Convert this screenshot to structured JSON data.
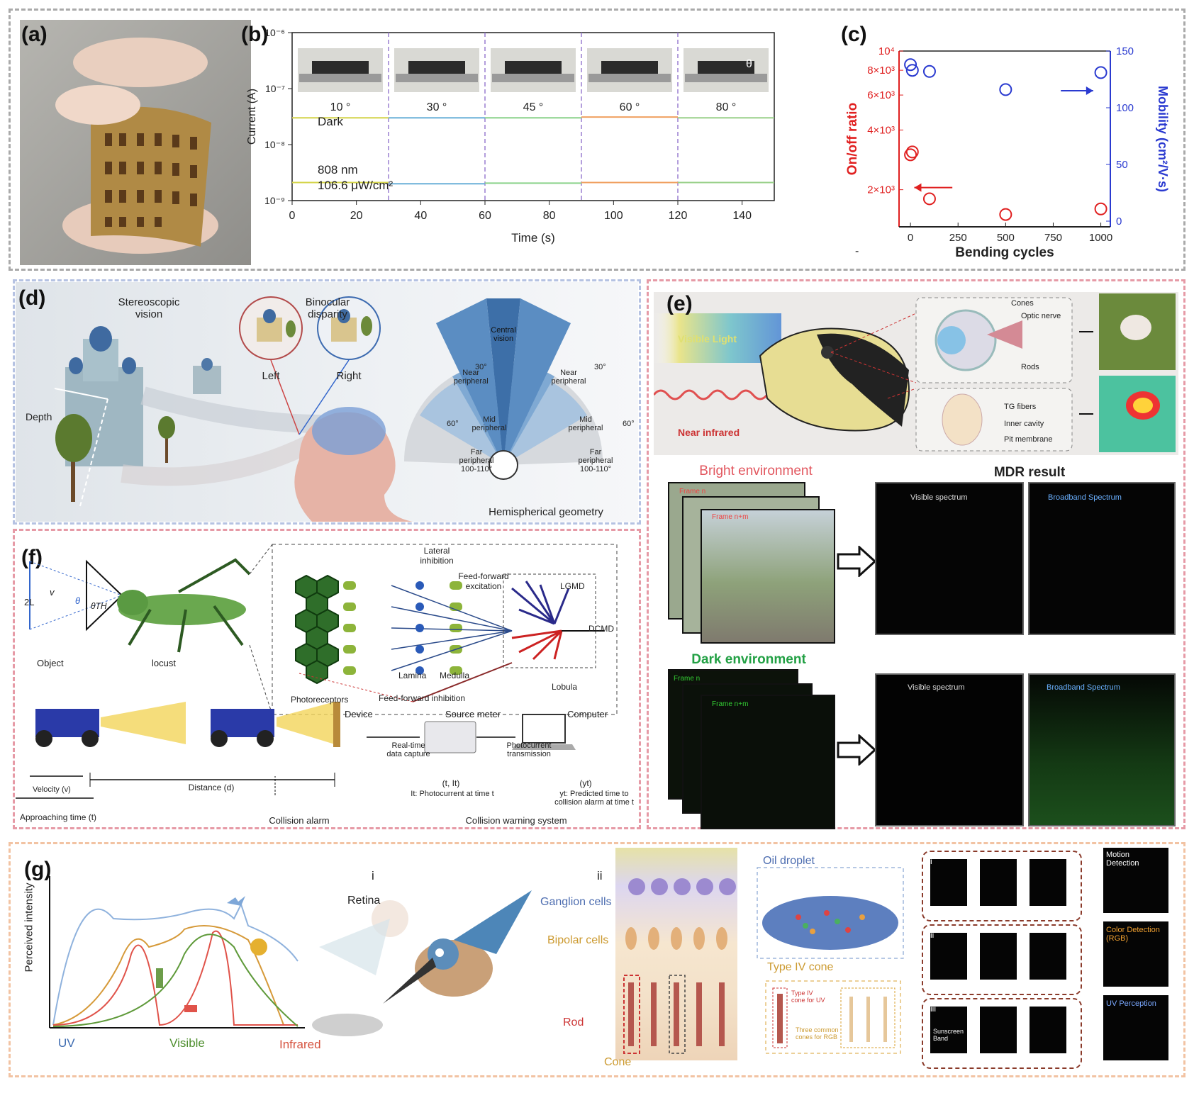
{
  "labels": {
    "a": "(a)",
    "b": "(b)",
    "c": "(c)",
    "d": "(d)",
    "e": "(e)",
    "f": "(f)",
    "g": "(g)"
  },
  "b": {
    "angles": [
      "10 °",
      "30 °",
      "45 °",
      "60 °",
      "80 °"
    ],
    "dark": "Dark",
    "wavelength": "808 nm",
    "intensity": "106.6 μW/cm²",
    "theta": "θ",
    "chart_data": {
      "type": "line",
      "xlabel": "Time (s)",
      "ylabel": "Current (A)",
      "xlim": [
        0,
        150
      ],
      "ylim": [
        1e-09,
        1e-06
      ],
      "log_y": true,
      "x_ticks": [
        "0",
        "20",
        "40",
        "60",
        "80",
        "100",
        "120",
        "140"
      ],
      "y_ticks": [
        "10⁻⁹",
        "10⁻⁸",
        "10⁻⁷",
        "10⁻⁶"
      ],
      "dividers": [
        30,
        60,
        90,
        120
      ],
      "series": [
        {
          "segments": [
            [
              0,
              30,
              3e-08
            ],
            [
              30,
              60,
              3e-08
            ],
            [
              60,
              90,
              3e-08
            ],
            [
              90,
              120,
              3.1e-08
            ],
            [
              120,
              150,
              3e-08
            ]
          ]
        },
        {
          "segments": [
            [
              0,
              30,
              2.1e-09
            ],
            [
              30,
              60,
              2e-09
            ],
            [
              60,
              90,
              2.05e-09
            ],
            [
              90,
              120,
              2.1e-09
            ],
            [
              120,
              150,
              2.1e-09
            ]
          ]
        }
      ]
    }
  },
  "c": {
    "chart_data": {
      "type": "scatter",
      "xlabel": "Bending cycles",
      "ylabel_left": "On/off ratio",
      "ylabel_right": "Mobility (cm²/V·s)",
      "x_ticks": [
        "0",
        "250",
        "500",
        "750",
        "1000"
      ],
      "y_left_ticks": [
        "2×10³",
        "4×10³",
        "6×10³",
        "8×10³",
        "10⁴"
      ],
      "y_right_ticks": [
        "0",
        "50",
        "100",
        "150"
      ],
      "xlim": [
        -60,
        1050
      ],
      "ylim_right": [
        -5,
        150
      ],
      "onoff": [
        [
          0,
          3000
        ],
        [
          10,
          3100
        ],
        [
          100,
          1800
        ],
        [
          500,
          1500
        ],
        [
          1000,
          1600
        ]
      ],
      "mobility": [
        [
          0,
          138
        ],
        [
          10,
          133
        ],
        [
          100,
          132
        ],
        [
          500,
          116
        ],
        [
          1000,
          131
        ]
      ]
    },
    "dash": "-"
  },
  "d": {
    "stereo": "Stereoscopic\nvision",
    "binocular": "Binocular\ndisparity",
    "left": "Left",
    "right": "Right",
    "depth": "Depth",
    "central": "Central\nvision",
    "near_l": "Near\nperipheral",
    "near_r": "Near\nperipheral",
    "mid_l": "Mid\nperipheral",
    "mid_r": "Mid\nperipheral",
    "far_l": "Far\nperipheral\n100-110°",
    "far_r": "Far\nperipheral\n100-110°",
    "a30l": "30°",
    "a30r": "30°",
    "a60l": "60°",
    "a60r": "60°",
    "hemi": "Hemispherical geometry"
  },
  "e": {
    "visible": "Visible Light",
    "nir": "Near infrared",
    "cones": "Cones",
    "optic": "Optic nerve",
    "rods": "Rods",
    "tg": "TG fibers",
    "inner": "Inner cavity",
    "pit": "Pit membrane",
    "bright": "Bright environment",
    "dark": "Dark environment",
    "mdr": "MDR result",
    "frame_n": "Frame n",
    "frame_nm": "Frame n+m",
    "frame_n2": "Frame n",
    "frame_nm2": "Frame n+m",
    "vis1": "Visible spectrum",
    "broad1": "Broadband Spectrum",
    "vis2": "Visible spectrum",
    "broad2": "Broadband Spectrum"
  },
  "f": {
    "two_l": "2L",
    "v": "v",
    "theta": "θ",
    "theta_th": "θTH",
    "object": "Object",
    "locust": "locust",
    "lateral": "Lateral\ninhibition",
    "ffe": "Feed-forward\nexcitation",
    "lgmd": "LGMD",
    "dcmd": "DCMD",
    "lamina": "Lamina",
    "medulla": "Medulla",
    "lobula": "Lobula",
    "photoreceptors": "Photoreceptors",
    "ffi": "Feed-forward inhibition",
    "device": "Device",
    "source": "Source meter",
    "computer": "Computer",
    "rt": "Real-time\ndata capture",
    "pt": "Photocurrent\ntransmission",
    "tit": "(t, It)",
    "it_desc": "It: Photocurrent at time t",
    "yt": "(yt)",
    "yt_desc": "yt: Predicted time to\ncollision alarm at time t",
    "velocity": "Velocity (v)",
    "distance": "Distance (d)",
    "approach": "Approaching time (t)",
    "alarm": "Collision alarm",
    "cws": "Collision warning system"
  },
  "g": {
    "ylabel": "Perceived intensity",
    "uv": "UV",
    "visible": "Visible",
    "ir": "Infrared",
    "i": "i",
    "retina": "Retina",
    "ii": "ii",
    "ganglion": "Ganglion cells",
    "bipolar": "Bipolar cells",
    "rod": "Rod",
    "cone": "Cone",
    "oil": "Oil droplet",
    "type4": "Type IV cone",
    "type4uv": "Type IV\ncone for UV",
    "three": "Three common\ncones for RGB",
    "ri": "i",
    "rii": "ii",
    "riii": "iii",
    "motion": "Motion\nDetection",
    "color": "Color Detection\n(RGB)",
    "uvp": "UV Perception",
    "sunscreen": "Sunscreen\nBand"
  }
}
